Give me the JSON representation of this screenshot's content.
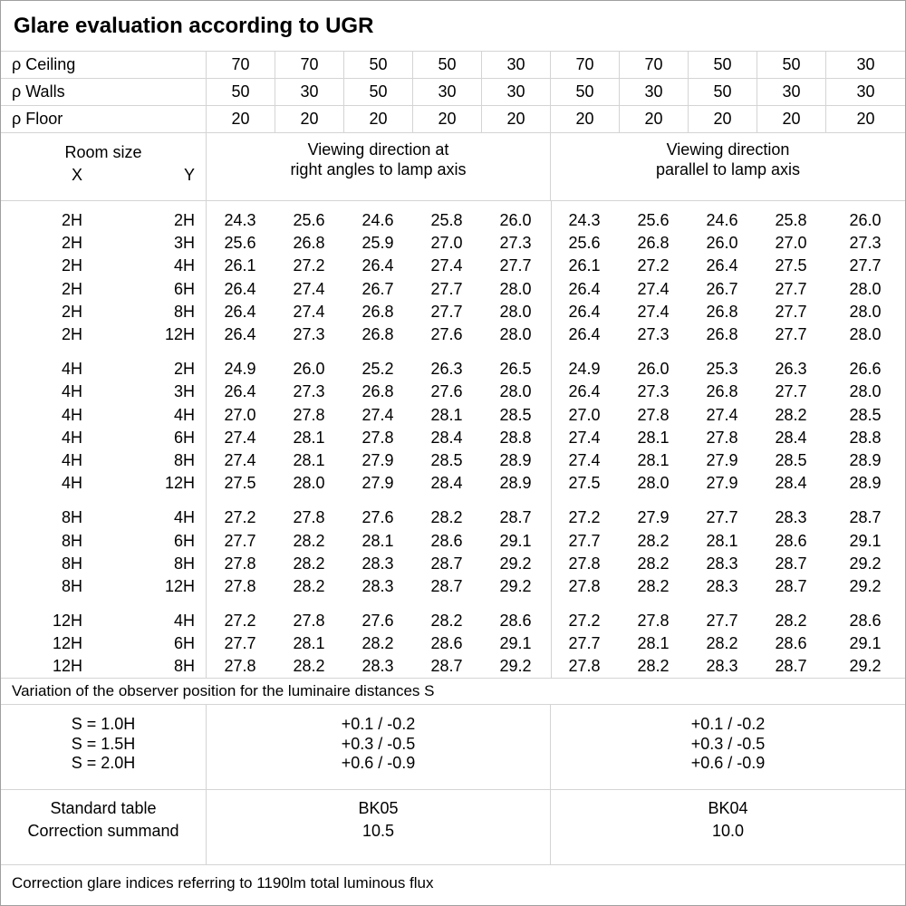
{
  "title": "Glare evaluation according to UGR",
  "reflectances": {
    "rows": [
      {
        "label": "ρ Ceiling",
        "values": [
          "70",
          "70",
          "50",
          "50",
          "30",
          "70",
          "70",
          "50",
          "50",
          "30"
        ]
      },
      {
        "label": "ρ Walls",
        "values": [
          "50",
          "30",
          "50",
          "30",
          "30",
          "50",
          "30",
          "50",
          "30",
          "30"
        ]
      },
      {
        "label": "ρ Floor",
        "values": [
          "20",
          "20",
          "20",
          "20",
          "20",
          "20",
          "20",
          "20",
          "20",
          "20"
        ]
      }
    ]
  },
  "room_size_header": {
    "title": "Room size",
    "x_label": "X",
    "y_label": "Y"
  },
  "viewing_headers": {
    "right_angles_line1": "Viewing direction at",
    "right_angles_line2": "right angles to lamp axis",
    "parallel_line1": "Viewing direction",
    "parallel_line2": "parallel to lamp axis"
  },
  "ugr_blocks": [
    {
      "rows": [
        {
          "x": "2H",
          "y": "2H",
          "right_angles": [
            "24.3",
            "25.6",
            "24.6",
            "25.8",
            "26.0"
          ],
          "parallel": [
            "24.3",
            "25.6",
            "24.6",
            "25.8",
            "26.0"
          ]
        },
        {
          "x": "2H",
          "y": "3H",
          "right_angles": [
            "25.6",
            "26.8",
            "25.9",
            "27.0",
            "27.3"
          ],
          "parallel": [
            "25.6",
            "26.8",
            "26.0",
            "27.0",
            "27.3"
          ]
        },
        {
          "x": "2H",
          "y": "4H",
          "right_angles": [
            "26.1",
            "27.2",
            "26.4",
            "27.4",
            "27.7"
          ],
          "parallel": [
            "26.1",
            "27.2",
            "26.4",
            "27.5",
            "27.7"
          ]
        },
        {
          "x": "2H",
          "y": "6H",
          "right_angles": [
            "26.4",
            "27.4",
            "26.7",
            "27.7",
            "28.0"
          ],
          "parallel": [
            "26.4",
            "27.4",
            "26.7",
            "27.7",
            "28.0"
          ]
        },
        {
          "x": "2H",
          "y": "8H",
          "right_angles": [
            "26.4",
            "27.4",
            "26.8",
            "27.7",
            "28.0"
          ],
          "parallel": [
            "26.4",
            "27.4",
            "26.8",
            "27.7",
            "28.0"
          ]
        },
        {
          "x": "2H",
          "y": "12H",
          "right_angles": [
            "26.4",
            "27.3",
            "26.8",
            "27.6",
            "28.0"
          ],
          "parallel": [
            "26.4",
            "27.3",
            "26.8",
            "27.7",
            "28.0"
          ]
        }
      ]
    },
    {
      "rows": [
        {
          "x": "4H",
          "y": "2H",
          "right_angles": [
            "24.9",
            "26.0",
            "25.2",
            "26.3",
            "26.5"
          ],
          "parallel": [
            "24.9",
            "26.0",
            "25.3",
            "26.3",
            "26.6"
          ]
        },
        {
          "x": "4H",
          "y": "3H",
          "right_angles": [
            "26.4",
            "27.3",
            "26.8",
            "27.6",
            "28.0"
          ],
          "parallel": [
            "26.4",
            "27.3",
            "26.8",
            "27.7",
            "28.0"
          ]
        },
        {
          "x": "4H",
          "y": "4H",
          "right_angles": [
            "27.0",
            "27.8",
            "27.4",
            "28.1",
            "28.5"
          ],
          "parallel": [
            "27.0",
            "27.8",
            "27.4",
            "28.2",
            "28.5"
          ]
        },
        {
          "x": "4H",
          "y": "6H",
          "right_angles": [
            "27.4",
            "28.1",
            "27.8",
            "28.4",
            "28.8"
          ],
          "parallel": [
            "27.4",
            "28.1",
            "27.8",
            "28.4",
            "28.8"
          ]
        },
        {
          "x": "4H",
          "y": "8H",
          "right_angles": [
            "27.4",
            "28.1",
            "27.9",
            "28.5",
            "28.9"
          ],
          "parallel": [
            "27.4",
            "28.1",
            "27.9",
            "28.5",
            "28.9"
          ]
        },
        {
          "x": "4H",
          "y": "12H",
          "right_angles": [
            "27.5",
            "28.0",
            "27.9",
            "28.4",
            "28.9"
          ],
          "parallel": [
            "27.5",
            "28.0",
            "27.9",
            "28.4",
            "28.9"
          ]
        }
      ]
    },
    {
      "rows": [
        {
          "x": "8H",
          "y": "4H",
          "right_angles": [
            "27.2",
            "27.8",
            "27.6",
            "28.2",
            "28.7"
          ],
          "parallel": [
            "27.2",
            "27.9",
            "27.7",
            "28.3",
            "28.7"
          ]
        },
        {
          "x": "8H",
          "y": "6H",
          "right_angles": [
            "27.7",
            "28.2",
            "28.1",
            "28.6",
            "29.1"
          ],
          "parallel": [
            "27.7",
            "28.2",
            "28.1",
            "28.6",
            "29.1"
          ]
        },
        {
          "x": "8H",
          "y": "8H",
          "right_angles": [
            "27.8",
            "28.2",
            "28.3",
            "28.7",
            "29.2"
          ],
          "parallel": [
            "27.8",
            "28.2",
            "28.3",
            "28.7",
            "29.2"
          ]
        },
        {
          "x": "8H",
          "y": "12H",
          "right_angles": [
            "27.8",
            "28.2",
            "28.3",
            "28.7",
            "29.2"
          ],
          "parallel": [
            "27.8",
            "28.2",
            "28.3",
            "28.7",
            "29.2"
          ]
        }
      ]
    },
    {
      "rows": [
        {
          "x": "12H",
          "y": "4H",
          "right_angles": [
            "27.2",
            "27.8",
            "27.6",
            "28.2",
            "28.6"
          ],
          "parallel": [
            "27.2",
            "27.8",
            "27.7",
            "28.2",
            "28.6"
          ]
        },
        {
          "x": "12H",
          "y": "6H",
          "right_angles": [
            "27.7",
            "28.1",
            "28.2",
            "28.6",
            "29.1"
          ],
          "parallel": [
            "27.7",
            "28.1",
            "28.2",
            "28.6",
            "29.1"
          ]
        },
        {
          "x": "12H",
          "y": "8H",
          "right_angles": [
            "27.8",
            "28.2",
            "28.3",
            "28.7",
            "29.2"
          ],
          "parallel": [
            "27.8",
            "28.2",
            "28.3",
            "28.7",
            "29.2"
          ]
        }
      ]
    }
  ],
  "variation_note": "Variation of the observer position for the luminaire distances S",
  "observer_variation": {
    "rows": [
      {
        "label": "S = 1.0H",
        "right_angles": "+0.1 / -0.2",
        "parallel": "+0.1 / -0.2"
      },
      {
        "label": "S = 1.5H",
        "right_angles": "+0.3 / -0.5",
        "parallel": "+0.3 / -0.5"
      },
      {
        "label": "S = 2.0H",
        "right_angles": "+0.6 / -0.9",
        "parallel": "+0.6 / -0.9"
      }
    ]
  },
  "standard_table": {
    "rows": [
      {
        "label": "Standard table",
        "right_angles": "BK05",
        "parallel": "BK04"
      },
      {
        "label": "Correction summand",
        "right_angles": "10.5",
        "parallel": "10.0"
      }
    ]
  },
  "footer_note": "Correction glare indices referring to 1190lm total luminous flux"
}
